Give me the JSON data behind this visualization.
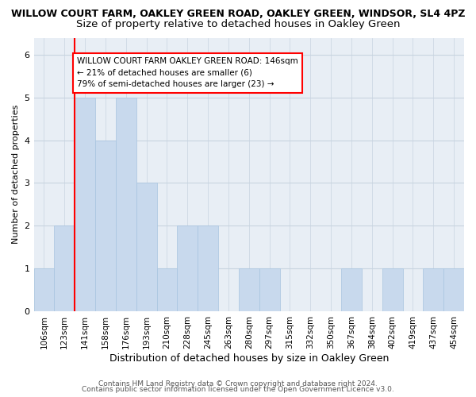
{
  "title": "WILLOW COURT FARM, OAKLEY GREEN ROAD, OAKLEY GREEN, WINDSOR, SL4 4PZ",
  "subtitle": "Size of property relative to detached houses in Oakley Green",
  "xlabel": "Distribution of detached houses by size in Oakley Green",
  "ylabel": "Number of detached properties",
  "categories": [
    "106sqm",
    "123sqm",
    "141sqm",
    "158sqm",
    "176sqm",
    "193sqm",
    "210sqm",
    "228sqm",
    "245sqm",
    "263sqm",
    "280sqm",
    "297sqm",
    "315sqm",
    "332sqm",
    "350sqm",
    "367sqm",
    "384sqm",
    "402sqm",
    "419sqm",
    "437sqm",
    "454sqm"
  ],
  "values": [
    1,
    2,
    5,
    4,
    5,
    3,
    1,
    2,
    2,
    0,
    1,
    1,
    0,
    0,
    0,
    1,
    0,
    1,
    0,
    1,
    1
  ],
  "bar_color": "#c8d9ed",
  "bar_edgecolor": "#a8c4e0",
  "redline_index": 2,
  "redline_label": "WILLOW COURT FARM OAKLEY GREEN ROAD: 146sqm",
  "annotation_line1": "← 21% of detached houses are smaller (6)",
  "annotation_line2": "79% of semi-detached houses are larger (23) →",
  "ylim": [
    0,
    6.4
  ],
  "yticks": [
    0,
    1,
    2,
    3,
    4,
    5,
    6
  ],
  "footer1": "Contains HM Land Registry data © Crown copyright and database right 2024.",
  "footer2": "Contains public sector information licensed under the Open Government Licence v3.0.",
  "bg_color": "#ffffff",
  "plot_bg_color": "#e8eef5",
  "grid_color": "#c8d4e0",
  "title_fontsize": 9,
  "subtitle_fontsize": 9.5,
  "xlabel_fontsize": 9,
  "ylabel_fontsize": 8,
  "tick_fontsize": 7.5,
  "footer_fontsize": 6.5,
  "annot_fontsize": 7.5
}
